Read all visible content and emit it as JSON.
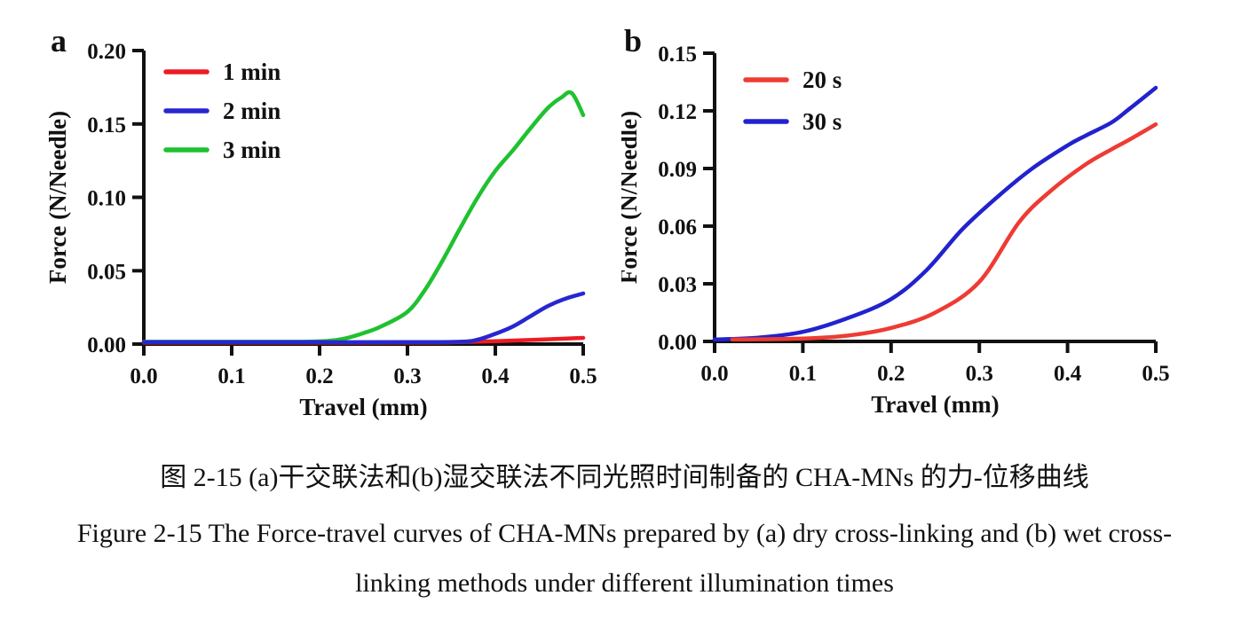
{
  "figure": {
    "panels": [
      {
        "label": "a"
      },
      {
        "label": "b"
      }
    ],
    "caption_zh": "图 2-15 (a)干交联法和(b)湿交联法不同光照时间制备的 CHA-MNs 的力-位移曲线",
    "caption_en_line1": "Figure 2-15 The Force-travel curves of CHA-MNs prepared by (a) dry cross-linking and (b) wet cross-",
    "caption_en_line2": "linking methods under different illumination times"
  },
  "chart_data": [
    {
      "type": "line",
      "panel": "a",
      "xlabel": "Travel (mm)",
      "ylabel": "Force (N/Needle)",
      "xlim": [
        0,
        0.5
      ],
      "ylim": [
        0,
        0.2
      ],
      "grid": false,
      "legend_position": "inside-top-left",
      "axis_color": "#111111",
      "xticks": [
        {
          "v": 0.0,
          "label": "0.0"
        },
        {
          "v": 0.1,
          "label": "0.1"
        },
        {
          "v": 0.2,
          "label": "0.2"
        },
        {
          "v": 0.3,
          "label": "0.3"
        },
        {
          "v": 0.4,
          "label": "0.4"
        },
        {
          "v": 0.5,
          "label": "0.5"
        }
      ],
      "yticks": [
        {
          "v": 0.0,
          "label": "0.00"
        },
        {
          "v": 0.05,
          "label": "0.05"
        },
        {
          "v": 0.1,
          "label": "0.10"
        },
        {
          "v": 0.15,
          "label": "0.15"
        },
        {
          "v": 0.2,
          "label": "0.20"
        }
      ],
      "series": [
        {
          "name": "1 min",
          "color": "#EC1C24",
          "points": [
            [
              0,
              0.001
            ],
            [
              0.1,
              0.001
            ],
            [
              0.2,
              0.001
            ],
            [
              0.3,
              0.001
            ],
            [
              0.35,
              0.0012
            ],
            [
              0.4,
              0.002
            ],
            [
              0.45,
              0.003
            ],
            [
              0.5,
              0.0042
            ]
          ]
        },
        {
          "name": "2 min",
          "color": "#2727CF",
          "points": [
            [
              0,
              0.0013
            ],
            [
              0.1,
              0.0013
            ],
            [
              0.2,
              0.0013
            ],
            [
              0.3,
              0.0013
            ],
            [
              0.36,
              0.0016
            ],
            [
              0.38,
              0.003
            ],
            [
              0.4,
              0.007
            ],
            [
              0.42,
              0.012
            ],
            [
              0.44,
              0.019
            ],
            [
              0.46,
              0.026
            ],
            [
              0.48,
              0.031
            ],
            [
              0.5,
              0.0345
            ]
          ]
        },
        {
          "name": "3 min",
          "color": "#1FC12F",
          "points": [
            [
              0,
              0.0016
            ],
            [
              0.1,
              0.0016
            ],
            [
              0.18,
              0.0016
            ],
            [
              0.21,
              0.0022
            ],
            [
              0.23,
              0.004
            ],
            [
              0.25,
              0.0075
            ],
            [
              0.27,
              0.012
            ],
            [
              0.3,
              0.022
            ],
            [
              0.32,
              0.037
            ],
            [
              0.34,
              0.057
            ],
            [
              0.36,
              0.079
            ],
            [
              0.38,
              0.1
            ],
            [
              0.4,
              0.118
            ],
            [
              0.42,
              0.132
            ],
            [
              0.44,
              0.147
            ],
            [
              0.46,
              0.161
            ],
            [
              0.475,
              0.168
            ],
            [
              0.487,
              0.171
            ],
            [
              0.5,
              0.156
            ]
          ]
        }
      ]
    },
    {
      "type": "line",
      "panel": "b",
      "xlabel": "Travel (mm)",
      "ylabel": "Force (N/Needle)",
      "xlim": [
        0,
        0.5
      ],
      "ylim": [
        0,
        0.15
      ],
      "grid": false,
      "legend_position": "inside-top-left",
      "axis_color": "#111111",
      "xticks": [
        {
          "v": 0.0,
          "label": "0.0"
        },
        {
          "v": 0.1,
          "label": "0.1"
        },
        {
          "v": 0.2,
          "label": "0.2"
        },
        {
          "v": 0.3,
          "label": "0.3"
        },
        {
          "v": 0.4,
          "label": "0.4"
        },
        {
          "v": 0.5,
          "label": "0.5"
        }
      ],
      "yticks": [
        {
          "v": 0.0,
          "label": "0.00"
        },
        {
          "v": 0.03,
          "label": "0.03"
        },
        {
          "v": 0.06,
          "label": "0.06"
        },
        {
          "v": 0.09,
          "label": "0.09"
        },
        {
          "v": 0.12,
          "label": "0.12"
        },
        {
          "v": 0.15,
          "label": "0.15"
        }
      ],
      "series": [
        {
          "name": "20 s",
          "color": "#EE3B33",
          "points": [
            [
              0.02,
              0.001
            ],
            [
              0.1,
              0.0015
            ],
            [
              0.15,
              0.003
            ],
            [
              0.2,
              0.007
            ],
            [
              0.25,
              0.015
            ],
            [
              0.3,
              0.031
            ],
            [
              0.345,
              0.062
            ],
            [
              0.38,
              0.078
            ],
            [
              0.42,
              0.092
            ],
            [
              0.45,
              0.1
            ],
            [
              0.47,
              0.105
            ],
            [
              0.5,
              0.113
            ]
          ]
        },
        {
          "name": "30 s",
          "color": "#2222CE",
          "points": [
            [
              0,
              0.001
            ],
            [
              0.05,
              0.002
            ],
            [
              0.1,
              0.005
            ],
            [
              0.15,
              0.012
            ],
            [
              0.2,
              0.022
            ],
            [
              0.24,
              0.037
            ],
            [
              0.28,
              0.058
            ],
            [
              0.32,
              0.075
            ],
            [
              0.36,
              0.09
            ],
            [
              0.4,
              0.102
            ],
            [
              0.42,
              0.107
            ],
            [
              0.45,
              0.114
            ],
            [
              0.47,
              0.121
            ],
            [
              0.5,
              0.132
            ]
          ]
        }
      ]
    }
  ]
}
